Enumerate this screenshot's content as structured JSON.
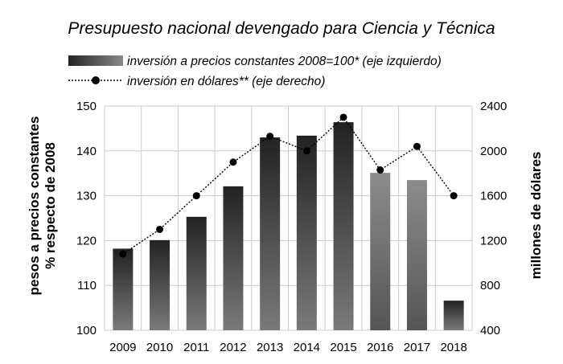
{
  "chart_data": {
    "type": "bar+line",
    "title": "Presupuesto nacional devengado para Ciencia y Técnica",
    "categories": [
      "2009",
      "2010",
      "2011",
      "2012",
      "2013",
      "2014",
      "2015",
      "2016",
      "2017",
      "2018"
    ],
    "series": [
      {
        "name": "inversión a precios constantes 2008=100* (eje izquierdo)",
        "type": "bar",
        "axis": "left",
        "values": [
          118.2,
          120.1,
          125.3,
          132.1,
          143.0,
          143.4,
          146.4,
          135.1,
          133.5,
          106.6
        ]
      },
      {
        "name": "inversión en dólares** (eje derecho)",
        "type": "line",
        "axis": "right",
        "style": "dotted line with filled circle markers",
        "values": [
          1080,
          1300,
          1600,
          1900,
          2130,
          2000,
          2300,
          1830,
          2040,
          1600
        ]
      }
    ],
    "ylabel": [
      "pesos a precios constantes",
      "% respecto de 2008"
    ],
    "ylabel_right": "millones de dólares",
    "ylim": [
      100,
      150
    ],
    "yticks": [
      "100",
      "110",
      "120",
      "130",
      "140",
      "150"
    ],
    "ylim_right": [
      400,
      2400
    ],
    "yticks_right": [
      "400",
      "800",
      "1200",
      "1600",
      "2000",
      "2400"
    ],
    "grid": true,
    "legend_position": "top",
    "colors": {
      "bar_dark_top": "#222222",
      "bar_dark_bottom": "#7a7a7a",
      "bar_light_top": "#8c8c8c",
      "bar_light_bottom": "#555555",
      "line": "#000000",
      "grid": "#cccccc"
    }
  }
}
